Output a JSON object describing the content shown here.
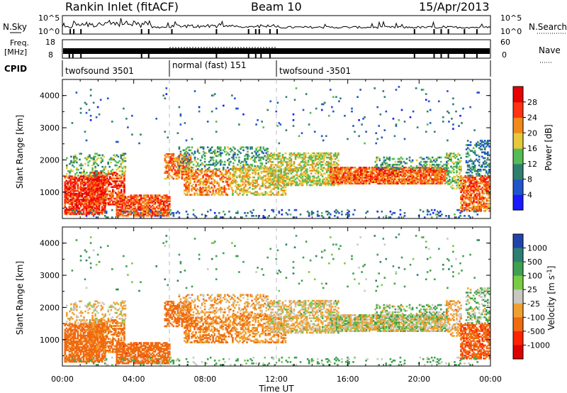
{
  "header": {
    "station": "Rankin Inlet (fitACF)",
    "beam": "Beam 10",
    "date": "15/Apr/2013"
  },
  "strip": {
    "nsky_label": "N.Sky",
    "nsearch_label": "N.Search",
    "nsky_ticks": [
      "10^5",
      "10^0"
    ],
    "nsearch_ticks": [
      "10^5",
      "10^0"
    ],
    "freq_label_1": "Freq.",
    "freq_label_2": "[MHz]",
    "freq_ticks": [
      "18",
      "8"
    ],
    "nave_label": "Nave",
    "nave_ticks": [
      "60",
      "0"
    ],
    "cpid_label": "CPID",
    "cpid_segments": [
      {
        "label": "twofsound 3501",
        "start": 0,
        "end": 6
      },
      {
        "label": "normal (fast) 151",
        "start": 6,
        "end": 12
      },
      {
        "label": "twofsound -3501",
        "start": 12,
        "end": 24
      }
    ]
  },
  "chart_data": [
    {
      "type": "heatmap",
      "panel": "power",
      "xlabel": "Time UT",
      "ylabel": "Slant Range [km]",
      "xlim": [
        0,
        24
      ],
      "ylim": [
        180,
        4500
      ],
      "yticks": [
        1000,
        2000,
        3000,
        4000
      ],
      "ytick_labels": [
        "1000",
        "2000",
        "3000",
        "4000"
      ],
      "colorbar_label": "Power [dB]",
      "colorbar_ticks": [
        "4",
        "8",
        "12",
        "16",
        "20",
        "24",
        "28"
      ],
      "colorbar_values": [
        4,
        8,
        12,
        16,
        20,
        24,
        28
      ],
      "colorbar_range": [
        0,
        32
      ],
      "colorbar_colors": [
        "#1a1aff",
        "#2255cc",
        "#2f7f6f",
        "#55bb55",
        "#e6c83a",
        "#f08a1a",
        "#ff3311",
        "#e60000"
      ]
    },
    {
      "type": "heatmap",
      "panel": "velocity",
      "xlabel": "Time UT",
      "ylabel": "Slant Range [km]",
      "xlim": [
        0,
        24
      ],
      "ylim": [
        180,
        4500
      ],
      "yticks": [
        1000,
        2000,
        3000,
        4000
      ],
      "ytick_labels": [
        "1000",
        "2000",
        "3000",
        "4000"
      ],
      "colorbar_label": "Velocity [m s",
      "colorbar_label_sup": "-1",
      "colorbar_label_end": "]",
      "colorbar_ticks": [
        "1000",
        "500",
        "100",
        "25",
        "-25",
        "-100",
        "-500",
        "-1000"
      ],
      "colorbar_colors": [
        "#2244aa",
        "#2e7f72",
        "#3fa050",
        "#77cc44",
        "#c8c8c0",
        "#f0a030",
        "#f06a10",
        "#ff2200",
        "#dd0000"
      ],
      "xticks": [
        0,
        4,
        8,
        12,
        16,
        20,
        24
      ],
      "xtick_labels": [
        "00:00",
        "04:00",
        "08:00",
        "12:00",
        "16:00",
        "20:00",
        "00:00"
      ]
    }
  ]
}
